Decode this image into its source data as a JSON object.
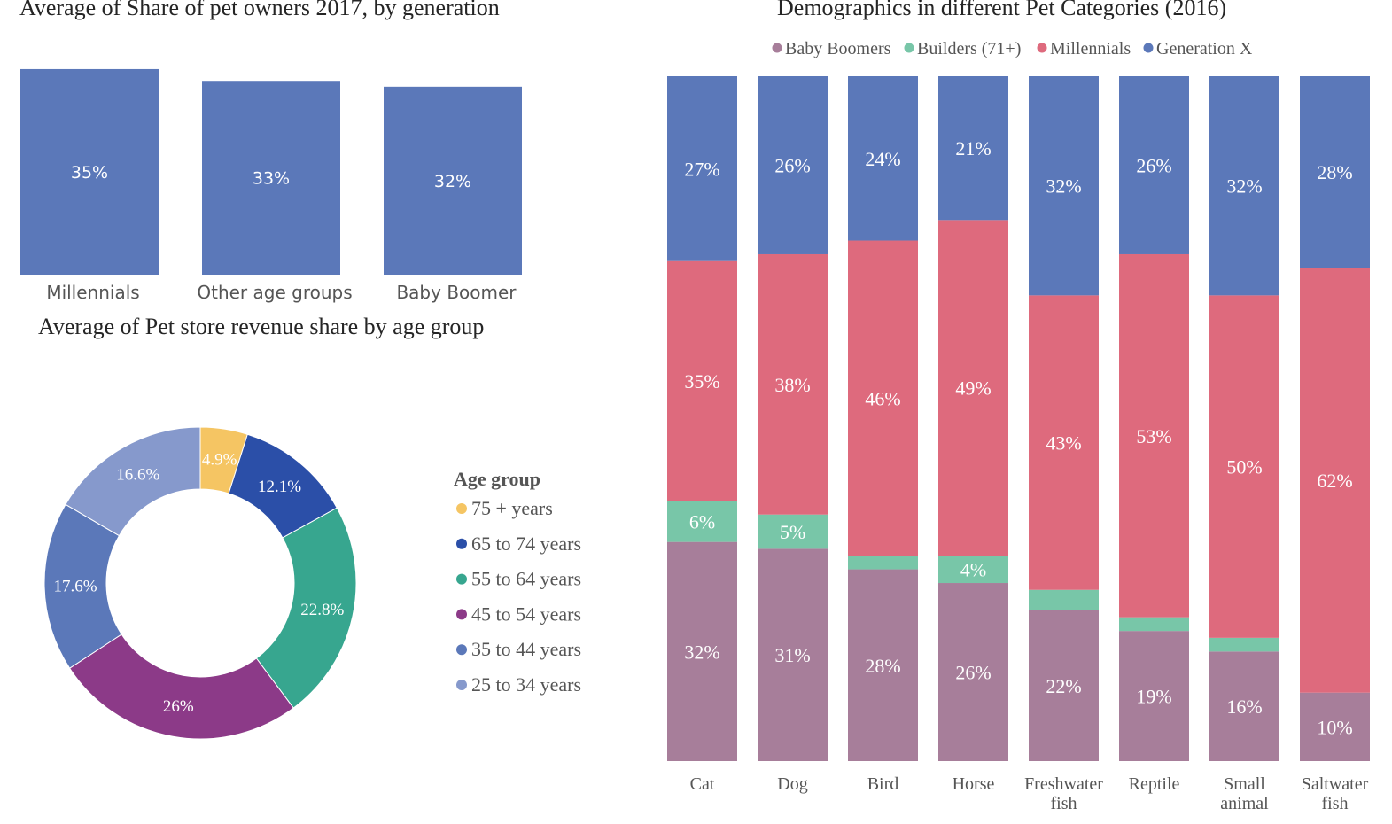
{
  "chart_data": [
    {
      "type": "bar",
      "title": "Average of Share of pet owners 2017, by generation",
      "categories": [
        "Millennials",
        "Other age groups",
        "Baby Boomer"
      ],
      "values": [
        35,
        33,
        32
      ],
      "value_labels": [
        "35%",
        "33%",
        "32%"
      ],
      "unit": "%",
      "color": "#5b78b9",
      "grid": false
    },
    {
      "type": "pie",
      "variant": "donut",
      "title": "Average of Pet store revenue share by age group",
      "legend_title": "Age group",
      "legend_position": "right",
      "slices": [
        {
          "name": "75 + years",
          "value": 4.9,
          "label": "4.9%",
          "color": "#f5c563"
        },
        {
          "name": "65 to 74 years",
          "value": 12.1,
          "label": "12.1%",
          "color": "#2b4fa8"
        },
        {
          "name": "55 to 64 years",
          "value": 22.8,
          "label": "22.8%",
          "color": "#37a68f"
        },
        {
          "name": "45 to 54 years",
          "value": 26.0,
          "label": "26%",
          "color": "#8c3a88"
        },
        {
          "name": "35 to 44 years",
          "value": 17.6,
          "label": "17.6%",
          "color": "#5b78b9"
        },
        {
          "name": "25 to 34 years",
          "value": 16.6,
          "label": "16.6%",
          "color": "#8699cc"
        }
      ]
    },
    {
      "type": "bar",
      "variant": "stacked-100",
      "title": "Demographics in different Pet Categories (2016)",
      "legend_position": "top",
      "legend_order": [
        "Baby Boomers",
        "Builders (71+)",
        "Millennials",
        "Generation X"
      ],
      "categories": [
        "Cat",
        "Dog",
        "Bird",
        "Horse",
        "Freshwater fish",
        "Reptile",
        "Small animal",
        "Saltwater fish"
      ],
      "series": [
        {
          "name": "Baby Boomers",
          "color": "#a77e9a",
          "values": [
            32,
            31,
            28,
            26,
            22,
            19,
            16,
            10
          ],
          "labels": [
            "32%",
            "31%",
            "28%",
            "26%",
            "22%",
            "19%",
            "16%",
            "10%"
          ]
        },
        {
          "name": "Builders (71+)",
          "color": "#78c6a8",
          "values": [
            6,
            5,
            2,
            4,
            3,
            2,
            2,
            0
          ],
          "labels": [
            "6%",
            "5%",
            "",
            "4%",
            "",
            "",
            "",
            ""
          ]
        },
        {
          "name": "Millennials",
          "color": "#de6a7d",
          "values": [
            35,
            38,
            46,
            49,
            43,
            53,
            50,
            62
          ],
          "labels": [
            "35%",
            "38%",
            "46%",
            "49%",
            "43%",
            "53%",
            "50%",
            "62%"
          ]
        },
        {
          "name": "Generation X",
          "color": "#5b78b9",
          "values": [
            27,
            26,
            24,
            21,
            32,
            26,
            32,
            28
          ],
          "labels": [
            "27%",
            "26%",
            "24%",
            "21%",
            "32%",
            "26%",
            "32%",
            "28%"
          ]
        }
      ],
      "ylim": [
        0,
        100
      ],
      "grid": false
    }
  ]
}
